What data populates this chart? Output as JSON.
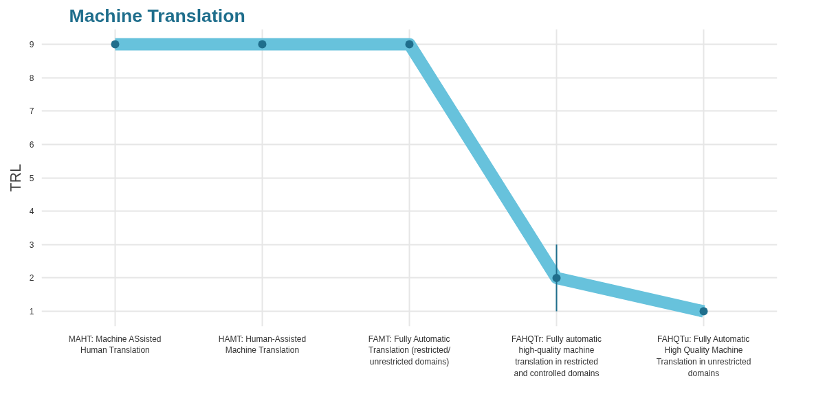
{
  "chart_data": {
    "type": "line",
    "title": "Machine Translation",
    "ylabel": "TRL",
    "categories": [
      "MAHT: Machine ASsisted Human Translation",
      "HAMT: Human-Assisted Machine Translation",
      "FAMT: Fully Automatic Translation (restricted/ unrestricted domains)",
      "FAHQTr: Fully automatic high-quality machine translation in restricted and controlled domains",
      "FAHQTu: Fully Automatic High Quality Machine Translation in unrestricted domains"
    ],
    "series": [
      {
        "color": "#67c2dc",
        "colors": [
          "#1f6e8c",
          "#1f6e8c",
          "#1f6e8c",
          "#1f6e8c",
          "#1f6e8c"
        ],
        "values": [
          9,
          9,
          9,
          2,
          1
        ],
        "errors": [
          null,
          null,
          null,
          [
            1,
            3
          ],
          null
        ]
      }
    ],
    "ylim": [
      0.55,
      9.45
    ],
    "yticks": [
      1,
      2,
      3,
      4,
      5,
      6,
      7,
      8,
      9
    ],
    "grid": true,
    "marker": "circle",
    "line_style": "solid"
  }
}
